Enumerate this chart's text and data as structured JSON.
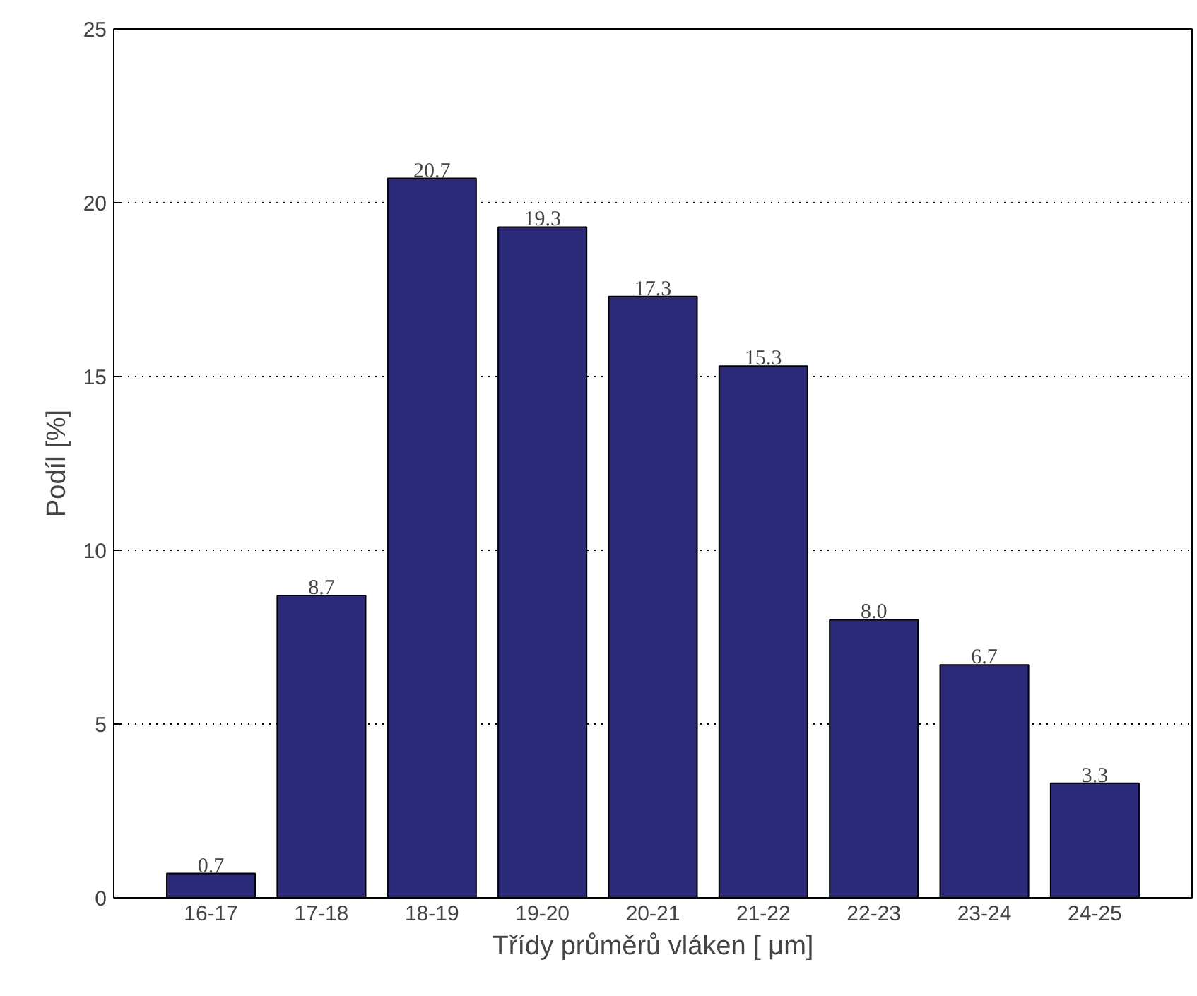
{
  "chart_data": {
    "type": "bar",
    "xlabel": "Třídy průměrů vláken [ μm]",
    "ylabel": "Podíl [%]",
    "categories": [
      "16-17",
      "17-18",
      "18-19",
      "19-20",
      "20-21",
      "21-22",
      "22-23",
      "23-24",
      "24-25"
    ],
    "values": [
      0.7,
      8.7,
      20.7,
      19.3,
      17.3,
      15.3,
      8.0,
      6.7,
      3.3
    ],
    "value_labels": [
      "0.7",
      "8.7",
      "20.7",
      "19.3",
      "17.3",
      "15.3",
      "8.0",
      "6.7",
      "3.3"
    ],
    "color": "#2b2a78",
    "ylim": [
      0,
      25
    ],
    "yticks": [
      0,
      5,
      10,
      15,
      20,
      25
    ],
    "grid": "y"
  }
}
